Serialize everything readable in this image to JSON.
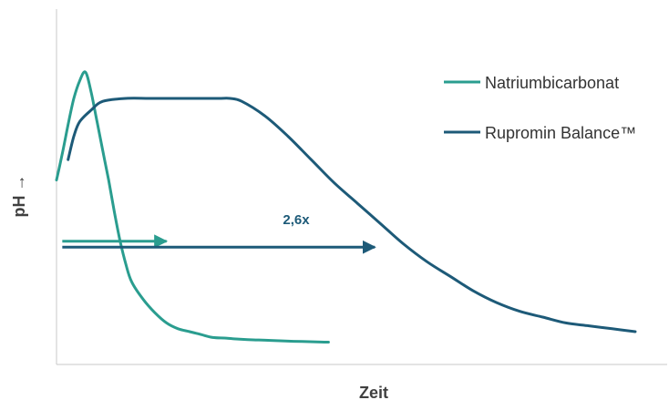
{
  "chart_data": {
    "type": "line",
    "xlabel": "Zeit",
    "ylabel": "pH →",
    "grid": false,
    "legend_position": "top-right",
    "xlim": [
      0,
      100
    ],
    "ylim": [
      0,
      100
    ],
    "series": [
      {
        "name": "Natriumbicarbonat",
        "color": "#2a9d8f",
        "x": [
          0,
          1,
          2,
          3,
          4,
          5,
          6,
          7,
          8,
          9,
          10,
          11,
          12,
          13,
          15,
          17,
          19,
          21,
          23,
          25,
          27,
          29,
          31,
          34,
          37,
          41,
          45,
          47
        ],
        "y": [
          57,
          66,
          76,
          85,
          91,
          94,
          87,
          77,
          67,
          57,
          46,
          36,
          28,
          22,
          16,
          11.5,
          8,
          6,
          5,
          4,
          3,
          2.8,
          2.5,
          2.2,
          2,
          1.7,
          1.5,
          1.4
        ]
      },
      {
        "name": "Rupromin Balance™",
        "color": "#1d5a78",
        "x": [
          2,
          3,
          4,
          6,
          8,
          12,
          16,
          20,
          24,
          28,
          30,
          32,
          36,
          40,
          44,
          48,
          52,
          56,
          60,
          64,
          68,
          72,
          76,
          80,
          84,
          88,
          92,
          96,
          100
        ],
        "y": [
          64,
          72,
          77,
          81,
          84,
          85,
          85,
          85,
          85,
          85,
          85,
          84,
          79,
          72,
          64,
          56,
          49,
          42,
          35,
          29,
          24,
          19,
          15,
          12,
          10,
          8,
          7,
          6,
          5
        ]
      }
    ],
    "annotations": [
      {
        "text": "",
        "color": "#2a9d8f",
        "x_start": 1,
        "x_end": 19,
        "y": 36
      },
      {
        "text": "2,6x",
        "color": "#1d5a78",
        "x_start": 1,
        "x_end": 55,
        "y": 34
      }
    ]
  }
}
